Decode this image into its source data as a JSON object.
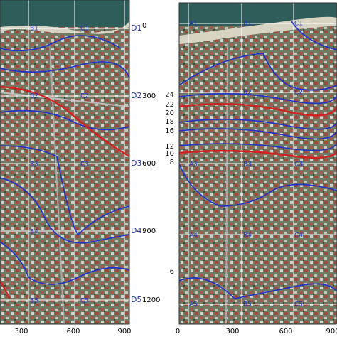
{
  "left_panel": {
    "row_labels": [
      "D1",
      "D2",
      "D3",
      "D4",
      "D5"
    ],
    "row_distances": [
      "0",
      "300",
      "600",
      "900",
      "1200"
    ],
    "x_labels": [
      "300",
      "600",
      "900"
    ],
    "grid_labels": [
      "B1",
      "C1",
      "B2",
      "C2",
      "B3",
      "C3",
      "B4",
      "B5",
      "C5"
    ]
  },
  "right_panel": {
    "x_labels": [
      "0",
      "300",
      "600",
      "900"
    ],
    "contour_labels": [
      "24",
      "22",
      "20",
      "18",
      "16",
      "12",
      "10",
      "8",
      "6"
    ],
    "grid_labels": [
      "A1",
      "B1",
      "C1",
      "B2",
      "C2",
      "A3",
      "B3",
      "C3",
      "A4",
      "B4",
      "C4",
      "A5",
      "B5",
      "C5"
    ]
  }
}
